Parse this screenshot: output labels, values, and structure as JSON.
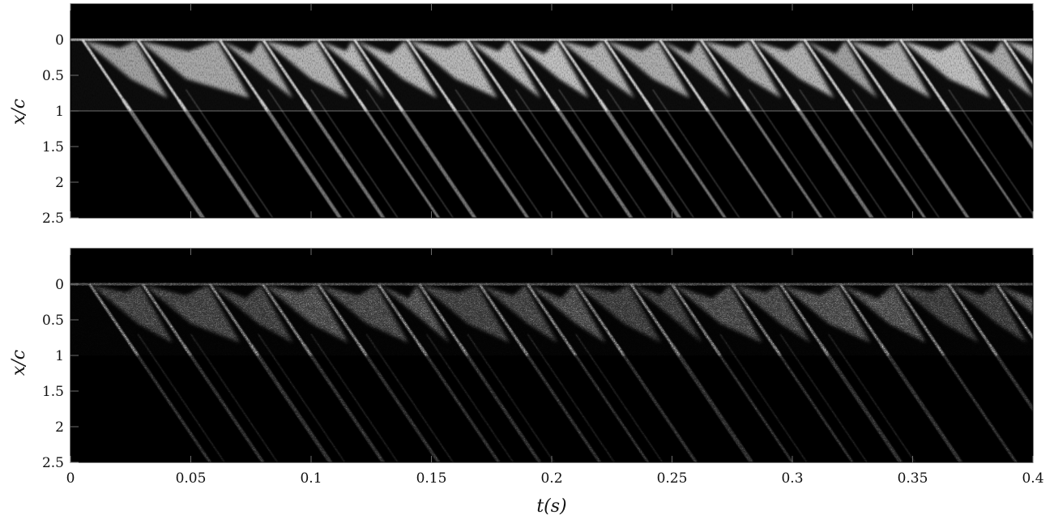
{
  "chart_data": [
    {
      "type": "heatmap",
      "name": "top",
      "xlabel": "",
      "ylabel": "x/c",
      "xlim": [
        0,
        0.4
      ],
      "ylim": [
        2.5,
        -0.5
      ],
      "y_ticks": [
        0,
        0.5,
        1,
        1.5,
        2,
        2.5
      ],
      "y_tick_labels": [
        "0",
        "0.5",
        "1",
        "1.5",
        "2",
        "2.5"
      ],
      "x_ticks": [
        0,
        0.05,
        0.1,
        0.15,
        0.2,
        0.25,
        0.3,
        0.35,
        0.4
      ],
      "colormap": "gray",
      "background": "#000000",
      "horizontal_line_at": 1,
      "shedding_event_times": [
        0.005,
        0.028,
        0.062,
        0.08,
        0.103,
        0.118,
        0.14,
        0.165,
        0.183,
        0.203,
        0.222,
        0.245,
        0.262,
        0.283,
        0.305,
        0.323,
        0.345,
        0.37,
        0.388
      ],
      "streak_slope_dt_per_dxc": 0.02
    },
    {
      "type": "heatmap",
      "name": "bottom",
      "xlabel": "t(s)",
      "ylabel": "x/c",
      "xlim": [
        0,
        0.4
      ],
      "ylim": [
        2.5,
        -0.5
      ],
      "y_ticks": [
        0,
        0.5,
        1,
        1.5,
        2,
        2.5
      ],
      "y_tick_labels": [
        "0",
        "0.5",
        "1",
        "1.5",
        "2",
        "2.5"
      ],
      "x_ticks": [
        0,
        0.05,
        0.1,
        0.15,
        0.2,
        0.25,
        0.3,
        0.35,
        0.4
      ],
      "x_tick_labels": [
        "0",
        "0.05",
        "0.1",
        "0.15",
        "0.2",
        "0.25",
        "0.3",
        "0.35",
        "0.4"
      ],
      "colormap": "gray",
      "background": "#000000",
      "shedding_event_times": [
        0.008,
        0.03,
        0.058,
        0.08,
        0.103,
        0.128,
        0.145,
        0.17,
        0.19,
        0.21,
        0.233,
        0.25,
        0.275,
        0.295,
        0.32,
        0.343,
        0.365,
        0.385
      ],
      "streak_slope_dt_per_dxc": 0.02
    }
  ]
}
